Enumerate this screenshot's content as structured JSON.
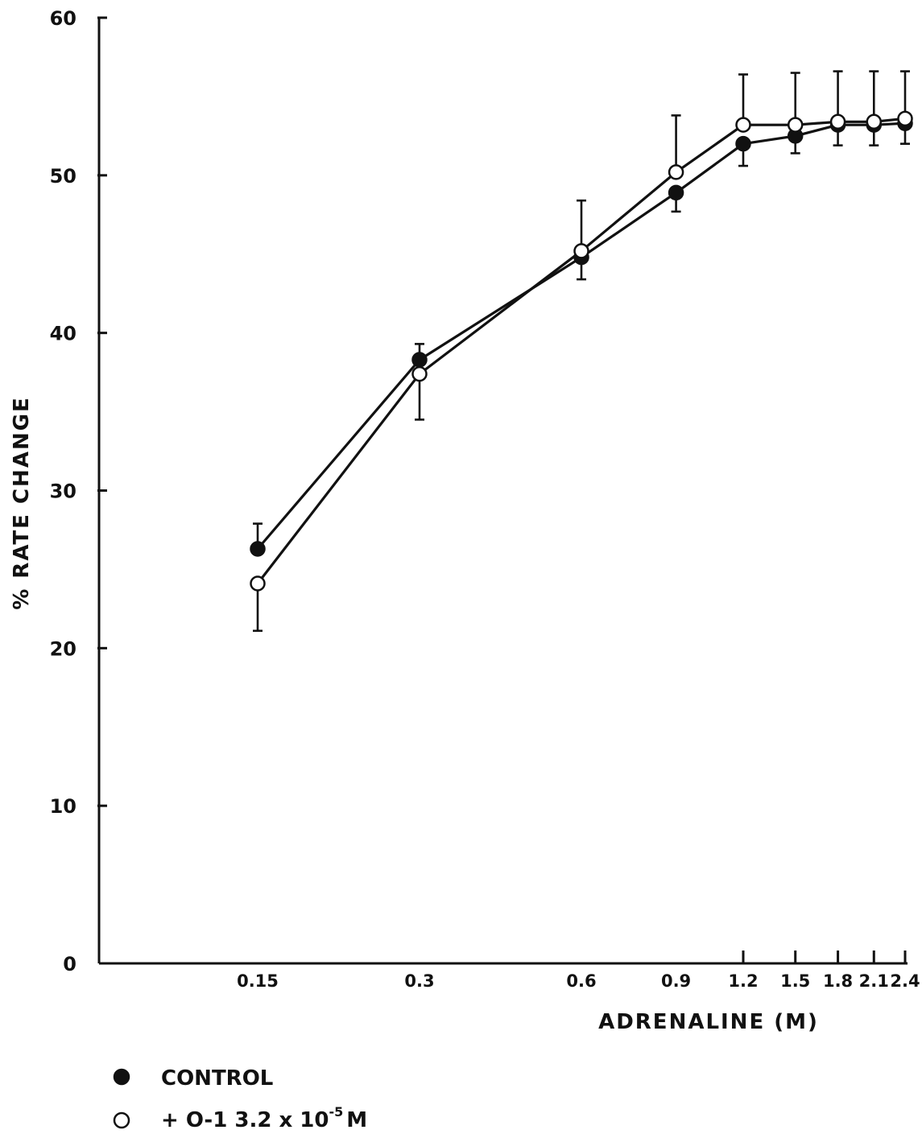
{
  "chart_data": {
    "type": "line",
    "title": "",
    "xlabel": "ADRENALINE (M)",
    "ylabel": "% RATE CHANGE",
    "ylim": [
      0,
      60
    ],
    "y_ticks": [
      "0",
      "10",
      "20",
      "30",
      "40",
      "50",
      "60"
    ],
    "x_tick_labels": [
      "0.15",
      "0.3",
      "0.6",
      "0.9",
      "1.2",
      "1.5",
      "1.8",
      "2.1",
      "2.4"
    ],
    "x_scale": "log",
    "grid": false,
    "legend_position": "bottom-left",
    "series": [
      {
        "name": "CONTROL",
        "marker": "filled-circle",
        "x": [
          0.15,
          0.3,
          0.6,
          0.9,
          1.2,
          1.5,
          1.8,
          2.1,
          2.4
        ],
        "values": [
          26.3,
          38.3,
          44.8,
          48.9,
          52.0,
          52.5,
          53.2,
          53.2,
          53.3
        ],
        "error_dir": "down",
        "errors": [
          0,
          0,
          1.4,
          1.2,
          1.4,
          1.1,
          1.3,
          1.3,
          1.3
        ],
        "errors_up": [
          1.6,
          1.0,
          0,
          0,
          0,
          0,
          0,
          0,
          0
        ]
      },
      {
        "name": "+ O-1 3.2 x 10-5 M",
        "marker": "open-circle",
        "x": [
          0.15,
          0.3,
          0.6,
          0.9,
          1.2,
          1.5,
          1.8,
          2.1,
          2.4
        ],
        "values": [
          24.1,
          37.4,
          45.2,
          50.2,
          53.2,
          53.2,
          53.4,
          53.4,
          53.6
        ],
        "error_dir": "up",
        "errors": [
          0,
          0,
          3.2,
          3.6,
          3.2,
          3.3,
          3.2,
          3.2,
          3.0
        ],
        "errors_down": [
          3.0,
          2.9,
          0,
          0,
          0,
          0,
          0,
          0,
          0
        ]
      }
    ],
    "legend": [
      {
        "marker": "filled-circle",
        "label": "CONTROL"
      },
      {
        "marker": "open-circle",
        "label_main": "+ O-1  3.2 x 10",
        "label_sup": "-5",
        "label_unit": "M"
      }
    ]
  }
}
